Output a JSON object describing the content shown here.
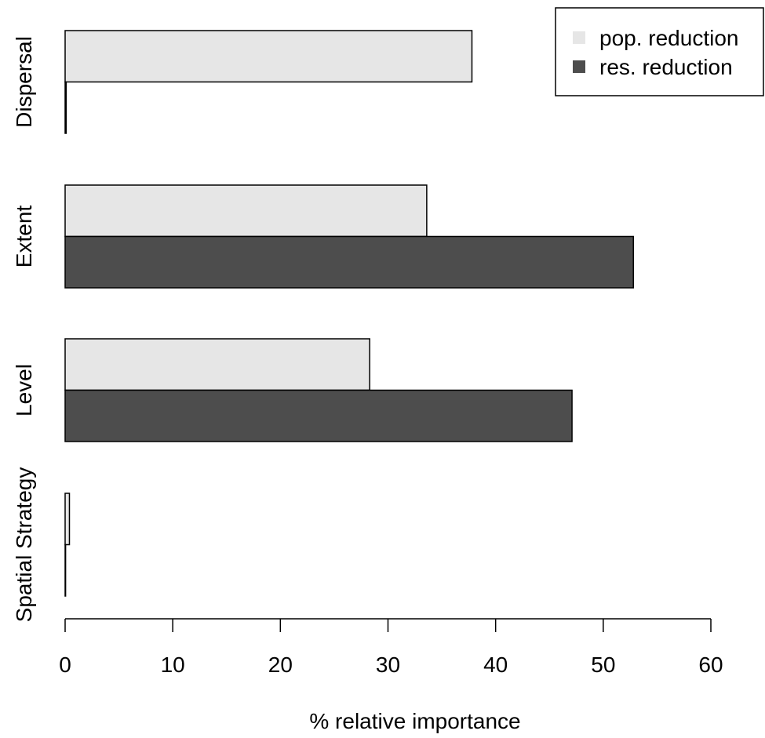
{
  "chart_data": {
    "type": "bar",
    "orientation": "horizontal",
    "categories": [
      "Dispersal",
      "Extent",
      "Level",
      "Spatial Strategy"
    ],
    "series": [
      {
        "name": "pop. reduction",
        "color": "#e6e6e6",
        "values": [
          37.8,
          33.6,
          28.3,
          0.4
        ]
      },
      {
        "name": "res. reduction",
        "color": "#4d4d4d",
        "values": [
          0.1,
          52.8,
          47.1,
          0.0
        ]
      }
    ],
    "xlabel": "% relative importance",
    "ylabel": "",
    "xlim": [
      0,
      60
    ],
    "xticks": [
      "0",
      "10",
      "20",
      "30",
      "40",
      "50",
      "60"
    ],
    "grid": false,
    "legend_position": "top-right"
  }
}
